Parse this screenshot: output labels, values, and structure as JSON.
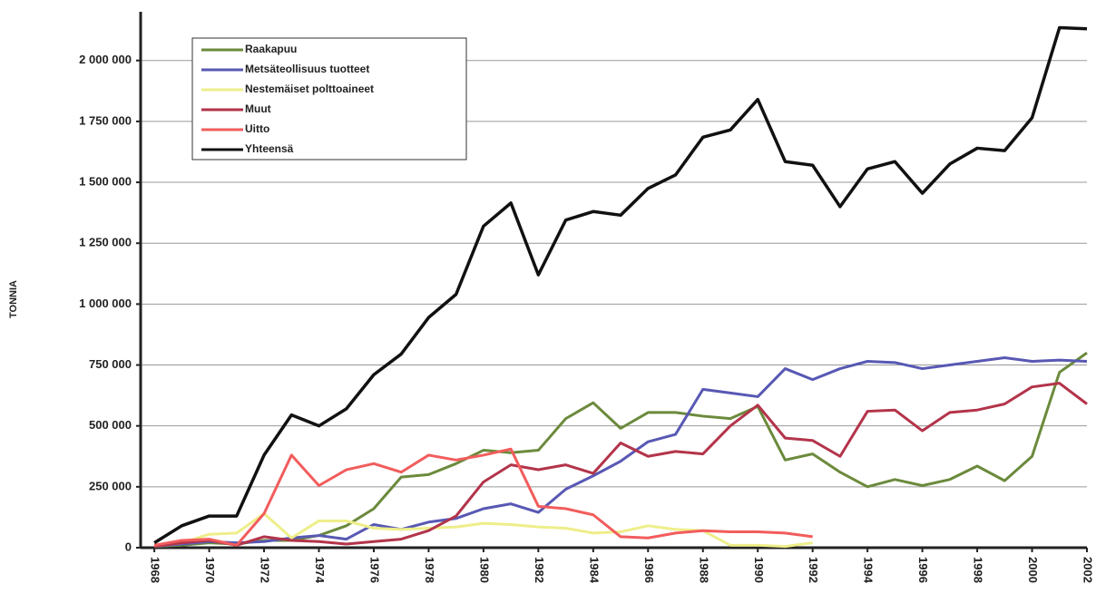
{
  "chart_data": {
    "type": "line",
    "y_label": "TONNIA",
    "x": [
      1968,
      1969,
      1970,
      1971,
      1972,
      1973,
      1974,
      1975,
      1976,
      1977,
      1978,
      1979,
      1980,
      1981,
      1982,
      1983,
      1984,
      1985,
      1986,
      1987,
      1988,
      1989,
      1990,
      1991,
      1992,
      1993,
      1994,
      1995,
      1996,
      1997,
      1998,
      1999,
      2000,
      2001,
      2002
    ],
    "xlim": [
      1967.5,
      2002
    ],
    "xticks": [
      1968,
      1970,
      1972,
      1974,
      1976,
      1978,
      1980,
      1982,
      1984,
      1986,
      1988,
      1990,
      1992,
      1994,
      1996,
      1998,
      2000,
      2002
    ],
    "ylim": [
      0,
      2200000
    ],
    "yticks": [
      0,
      {
        "value": 250000,
        "label": "250 000"
      },
      {
        "value": 500000,
        "label": "500 000"
      },
      {
        "value": 750000,
        "label": "750 000"
      },
      {
        "value": 1000000,
        "label": "1 000 000"
      },
      {
        "value": 1250000,
        "label": "1 250 000"
      },
      {
        "value": 1500000,
        "label": "1 500 000"
      },
      {
        "value": 1750000,
        "label": "1 750 000"
      },
      {
        "value": 2000000,
        "label": "2 000 000"
      }
    ],
    "grid": true,
    "legend": "upper left",
    "series": [
      {
        "name": "Raakapuu",
        "color": "#6b8a3c",
        "values": [
          5000,
          10000,
          20000,
          15000,
          30000,
          30000,
          50000,
          90000,
          160000,
          290000,
          300000,
          345000,
          400000,
          390000,
          400000,
          530000,
          595000,
          490000,
          555000,
          555000,
          540000,
          530000,
          580000,
          360000,
          385000,
          310000,
          250000,
          280000,
          255000,
          280000,
          335000,
          275000,
          375000,
          720000,
          800000
        ]
      },
      {
        "name": "Metsäteollisuus tuotteet",
        "color": "#5858b4",
        "values": [
          5000,
          15000,
          25000,
          20000,
          25000,
          40000,
          50000,
          35000,
          95000,
          75000,
          105000,
          120000,
          160000,
          180000,
          145000,
          240000,
          295000,
          355000,
          435000,
          465000,
          650000,
          635000,
          620000,
          735000,
          690000,
          735000,
          765000,
          760000,
          735000,
          750000,
          765000,
          780000,
          765000,
          770000,
          765000
        ]
      },
      {
        "name": "Nestemäiset polttoaineet",
        "color": "#eeee8a",
        "values": [
          5000,
          20000,
          55000,
          60000,
          140000,
          40000,
          110000,
          110000,
          80000,
          75000,
          80000,
          85000,
          100000,
          95000,
          85000,
          80000,
          60000,
          65000,
          90000,
          75000,
          70000,
          10000,
          10000,
          5000,
          20000,
          null,
          null,
          null,
          null,
          null,
          null,
          null,
          null,
          null,
          null
        ]
      },
      {
        "name": "Muut",
        "color": "#b3344a",
        "values": [
          5000,
          20000,
          30000,
          10000,
          45000,
          30000,
          25000,
          15000,
          25000,
          35000,
          70000,
          130000,
          270000,
          340000,
          320000,
          340000,
          305000,
          430000,
          375000,
          395000,
          385000,
          500000,
          585000,
          450000,
          440000,
          375000,
          560000,
          565000,
          480000,
          555000,
          565000,
          590000,
          660000,
          675000,
          590000
        ]
      },
      {
        "name": "Uitto",
        "color": "#f25c5c",
        "values": [
          10000,
          30000,
          35000,
          10000,
          140000,
          380000,
          255000,
          320000,
          345000,
          310000,
          380000,
          360000,
          380000,
          405000,
          170000,
          160000,
          135000,
          45000,
          40000,
          60000,
          70000,
          65000,
          65000,
          60000,
          45000,
          null,
          null,
          null,
          null,
          null,
          null,
          null,
          null,
          null,
          null
        ]
      },
      {
        "name": "Yhteensä",
        "color": "#111111",
        "values": [
          20000,
          90000,
          130000,
          130000,
          380000,
          545000,
          500000,
          570000,
          710000,
          795000,
          945000,
          1040000,
          1320000,
          1415000,
          1120000,
          1345000,
          1380000,
          1365000,
          1475000,
          1530000,
          1685000,
          1715000,
          1840000,
          1585000,
          1570000,
          1400000,
          1555000,
          1585000,
          1455000,
          1575000,
          1640000,
          1630000,
          1765000,
          2135000,
          2130000
        ]
      }
    ]
  }
}
